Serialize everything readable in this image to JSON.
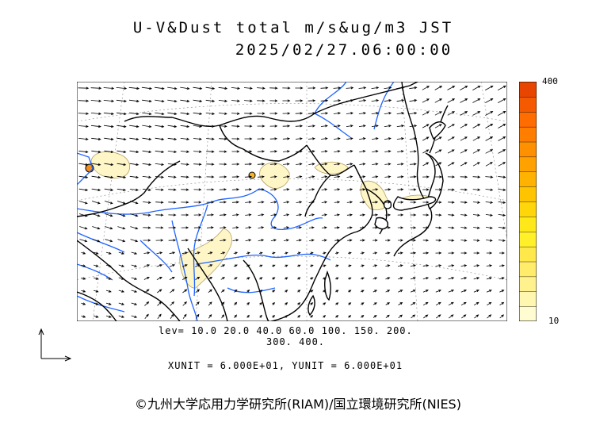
{
  "title": {
    "line1": "U-V&Dust total m/s&ug/m3 JST",
    "line2": "2025/02/27.06:00:00"
  },
  "colorbar": {
    "max_label": "400",
    "min_label": "10",
    "colors": [
      "#fffcd2",
      "#fff6b0",
      "#fff18e",
      "#ffec6a",
      "#ffe84a",
      "#fff02a",
      "#ffe81a",
      "#ffd60a",
      "#ffc400",
      "#ffb300",
      "#ffa200",
      "#ff9000",
      "#ff7e00",
      "#ff6c00",
      "#f55a00",
      "#e84600"
    ]
  },
  "legend": {
    "levels_line1": "lev= 10.0 20.0 40.0 60.0 100. 150. 200.",
    "levels_line2": "300. 400.",
    "units": "XUNIT = 6.000E+01, YUNIT = 6.000E+01"
  },
  "map": {
    "region": "East Asia",
    "land_color": "#ffffff",
    "coast_color": "#000000",
    "river_color": "#1e64ff",
    "dust_fill": "#fff6c8",
    "dust_outline": "#b4a060",
    "arrow_color": "#000000"
  },
  "copyright": "©九州大学応用力学研究所(RIAM)/国立環境研究所(NIES)"
}
